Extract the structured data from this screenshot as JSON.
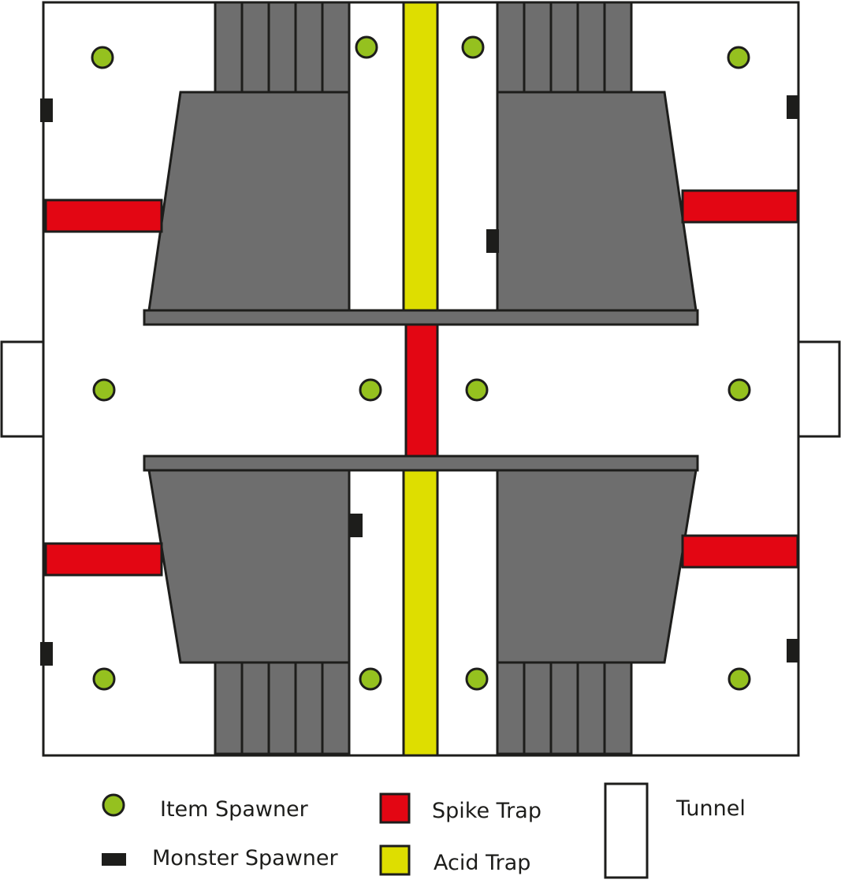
{
  "colors": {
    "outline": "#1d1d1b",
    "wall": "#6e6e6e",
    "floor": "#ffffff",
    "item_spawner": "#95c11f",
    "spike_trap": "#e30613",
    "acid_trap": "#dede00"
  },
  "legend": {
    "item_spawner": "Item Spawner",
    "monster_spawner": "Monster Spawner",
    "spike_trap": "Spike Trap",
    "acid_trap": "Acid Trap",
    "tunnel": "Tunnel"
  }
}
